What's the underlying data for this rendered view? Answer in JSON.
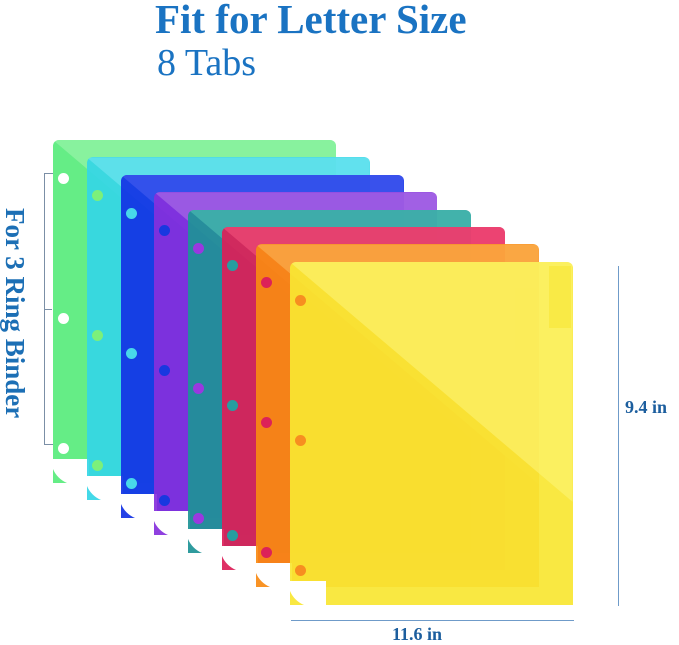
{
  "header": {
    "title": "Fit for Letter Size",
    "subtitle": "8 Tabs"
  },
  "side_label": "For 3 Ring Binder",
  "dimensions": {
    "height": "9.4 in",
    "width": "11.6 in"
  },
  "colors": {
    "text_blue": "#1a73c2",
    "dimension_line": "#6f9bc9"
  },
  "dividers": [
    {
      "name": "green",
      "color": "#58ec7c",
      "light": "#a6f5b2",
      "hole": "#ffffff"
    },
    {
      "name": "cyan",
      "color": "#34d6e6",
      "light": "#7ae8f2",
      "hole": "#7cf07a"
    },
    {
      "name": "blue",
      "color": "#1232e4",
      "light": "#4a5ef0",
      "hole": "#48d8ea"
    },
    {
      "name": "purple",
      "color": "#8530dc",
      "light": "#b07ae8",
      "hole": "#1838e0"
    },
    {
      "name": "teal",
      "color": "#1d9396",
      "light": "#52c4b6",
      "hole": "#9a38e0"
    },
    {
      "name": "red",
      "color": "#dc1e58",
      "light": "#f6547e",
      "hole": "#279ea0"
    },
    {
      "name": "orange",
      "color": "#f98a12",
      "light": "#fcb85c",
      "hole": "#dc2258"
    },
    {
      "name": "yellow",
      "color": "#f8e632",
      "light": "#fdf57a",
      "hole": "#f78e20"
    }
  ]
}
